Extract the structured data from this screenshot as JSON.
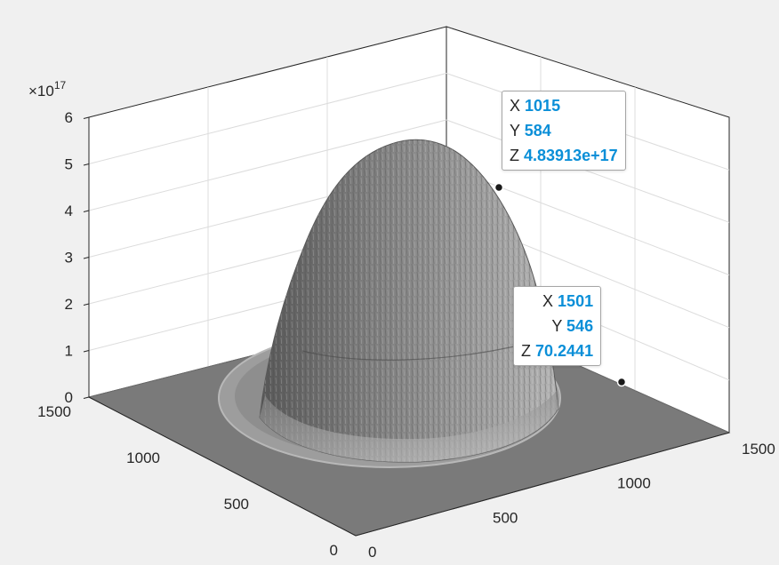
{
  "chart_data": {
    "type": "surface",
    "title": "",
    "xlabel": "",
    "ylabel": "",
    "zlabel": "",
    "xlim": [
      0,
      1500
    ],
    "ylim": [
      0,
      1500
    ],
    "zlim": [
      0,
      6
    ],
    "z_exponent_label": "×10",
    "z_exponent": "17",
    "x_ticks": [
      "0",
      "500",
      "1000",
      "1500"
    ],
    "y_ticks": [
      "0",
      "500",
      "1000",
      "1500"
    ],
    "z_ticks": [
      "0",
      "1",
      "2",
      "3",
      "4",
      "5",
      "6"
    ],
    "grid": true,
    "surface_color": "#8c8c8c",
    "floor_color": "#7a7a7a",
    "datatips": [
      {
        "x_label": "X",
        "x_value": "1015",
        "y_label": "Y",
        "y_value": "584",
        "z_label": "Z",
        "z_value": "4.83913e+17"
      },
      {
        "x_label": "X",
        "x_value": "1501",
        "y_label": "Y",
        "y_value": "546",
        "z_label": "Z",
        "z_value": "70.2441"
      }
    ],
    "datatip_points": [
      {
        "x": 1015,
        "y": 584,
        "z": 4.83913
      },
      {
        "x": 1501,
        "y": 546,
        "z": 0
      }
    ]
  },
  "colors": {
    "background": "#f0f0f0",
    "axes_background": "#ffffff",
    "grid": "#dcdcdc",
    "value_text": "#0a8fd8"
  }
}
